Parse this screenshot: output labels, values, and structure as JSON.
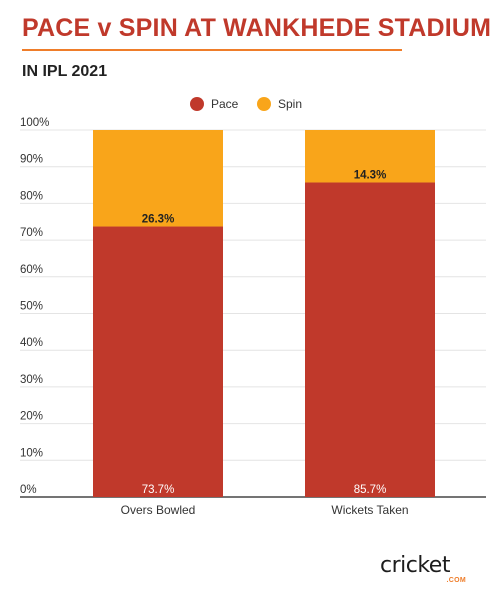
{
  "header": {
    "title": "PACE v SPIN AT WANKHEDE STADIUM",
    "subtitle": "IN IPL 2021"
  },
  "logo": {
    "text": "cricket",
    "sub": ".COM"
  },
  "colors": {
    "pace": "#c0392b",
    "spin": "#f9a51a",
    "title": "#c0392b",
    "accent": "#ef7d2a"
  },
  "chart_data": {
    "type": "bar",
    "stacked": true,
    "categories": [
      "Overs Bowled",
      "Wickets Taken"
    ],
    "series": [
      {
        "name": "Pace",
        "values": [
          73.7,
          85.7
        ],
        "labels": [
          "73.7%",
          "85.7%"
        ],
        "color": "#c0392b"
      },
      {
        "name": "Spin",
        "values": [
          26.3,
          14.3
        ],
        "labels": [
          "26.3%",
          "14.3%"
        ],
        "color": "#f9a51a"
      }
    ],
    "yticks": [
      "0%",
      "10%",
      "20%",
      "30%",
      "40%",
      "50%",
      "60%",
      "70%",
      "80%",
      "90%",
      "100%"
    ],
    "ylim": [
      0,
      100
    ],
    "grid": true,
    "legend_position": "top-center"
  }
}
